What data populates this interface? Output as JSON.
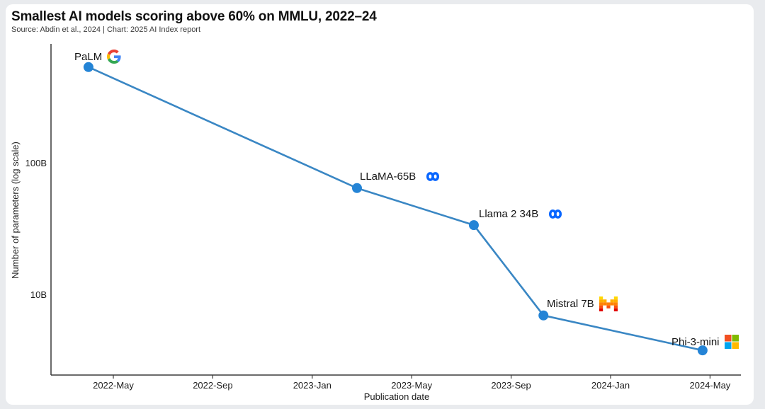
{
  "chart_data": {
    "type": "line",
    "title": "Smallest AI models scoring above 60% on MMLU, 2022–24",
    "source": "Source: Abdin et al., 2024 | Chart: 2025 AI Index report",
    "xlabel": "Publication date",
    "ylabel": "Number of parameters (log scale)",
    "y_scale": "log",
    "y_ticks": [
      "100B",
      "10B"
    ],
    "x_ticks": [
      "2022-May",
      "2022-Sep",
      "2023-Jan",
      "2023-May",
      "2023-Sep",
      "2024-Jan",
      "2024-May"
    ],
    "x_range_months_from_2022_jan": [
      1.5,
      29.2
    ],
    "y_range_b": [
      2.5,
      800
    ],
    "grid": false,
    "legend": false,
    "line_color": "#3a87c4",
    "marker_color": "#2484d6",
    "axis_color": "#3a3a3a",
    "page_background": "#e9ebee",
    "card_background": "#ffffff",
    "points": [
      {
        "label": "PaLM",
        "org": "google",
        "icon": "google-logo-icon",
        "date": "2022-Apr",
        "x_months": 3.0,
        "params_b": 540
      },
      {
        "label": "LLaMA-65B",
        "org": "meta",
        "icon": "meta-logo-icon",
        "date": "2023-Feb",
        "x_months": 13.8,
        "params_b": 65
      },
      {
        "label": "Llama 2 34B",
        "org": "meta",
        "icon": "meta-logo-icon",
        "date": "2023-Jul",
        "x_months": 18.5,
        "params_b": 34
      },
      {
        "label": "Mistral 7B",
        "org": "mistral",
        "icon": "mistral-logo-icon",
        "date": "2023-Oct",
        "x_months": 21.3,
        "params_b": 7
      },
      {
        "label": "Phi-3-mini",
        "org": "microsoft",
        "icon": "microsoft-logo-icon",
        "date": "2024-Apr",
        "x_months": 27.7,
        "params_b": 3.8
      }
    ],
    "brand_colors": {
      "google": {
        "blue": "#4285F4",
        "red": "#EA4335",
        "yellow": "#FBBC05",
        "green": "#34A853"
      },
      "meta": "#0866FF",
      "mistral": [
        "#FFD800",
        "#FFAF00",
        "#FF8205",
        "#FA500F",
        "#E10500"
      ],
      "microsoft": [
        "#F25022",
        "#7FBA00",
        "#00A4EF",
        "#FFB900"
      ]
    }
  }
}
